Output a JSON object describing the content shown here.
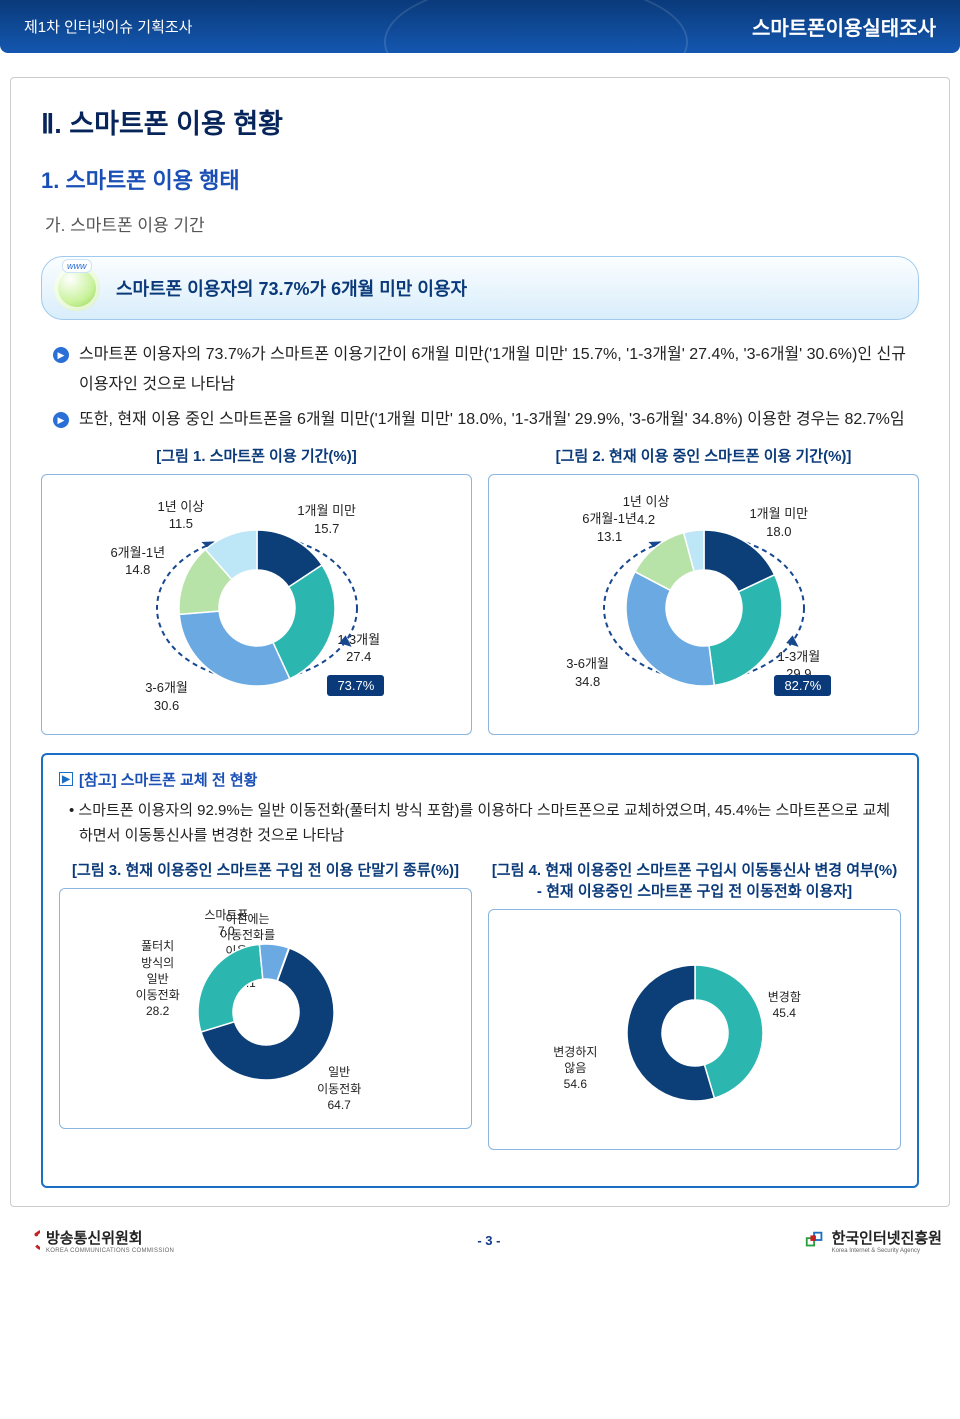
{
  "header": {
    "left": "제1차 인터넷이슈 기획조사",
    "right": "스마트폰이용실태조사"
  },
  "page": {
    "h1": "Ⅱ. 스마트폰 이용 현황",
    "h2": "1. 스마트폰 이용 행태",
    "h3": "가. 스마트폰 이용 기간",
    "highlight": "스마트폰 이용자의 73.7%가 6개월 미만 이용자",
    "bullet1": "스마트폰 이용자의 73.7%가 스마트폰 이용기간이 6개월 미만('1개월 미만' 15.7%, '1-3개월' 27.4%, '3-6개월' 30.6%)인 신규 이용자인 것으로 나타남",
    "bullet2": "또한, 현재 이용 중인 스마트폰을 6개월 미만('1개월 미만' 18.0%, '1-3개월' 29.9%, '3-6개월' 34.8%) 이용한 경우는 82.7%임",
    "fig1_title": "[그림 1. 스마트폰 이용 기간(%)]",
    "fig2_title": "[그림 2. 현재 이용 중인 스마트폰 이용 기간(%)]",
    "fig3_title": "[그림 3. 현재 이용중인 스마트폰 구입 전 이용 단말기 종류(%)]",
    "fig4_title": "[그림 4. 현재 이용중인 스마트폰 구입시 이동통신사 변경 여부(%) - 현재 이용중인 스마트폰 구입 전 이동전화 이용자]",
    "ref_title": "[참고] 스마트폰 교체 전 현황",
    "ref_bullet": "스마트폰 이용자의 92.9%는 일반 이동전화(풀터치 방식 포함)를 이용하다 스마트폰으로 교체하였으며, 45.4%는 스마트폰으로 교체하면서 이동통신사를 변경한 것으로 나타남"
  },
  "charts": {
    "fig1": {
      "type": "donut",
      "badge": "73.7%",
      "slices": [
        {
          "label": "1개월 미만",
          "value": 15.7,
          "color": "#0c3f77"
        },
        {
          "label": "1-3개월",
          "value": 27.4,
          "color": "#2bb6b0"
        },
        {
          "label": "3-6개월",
          "value": 30.6,
          "color": "#6aa9e2"
        },
        {
          "label": "6개월-1년",
          "value": 14.8,
          "color": "#b8e3a8"
        },
        {
          "label": "1년 이상",
          "value": 11.5,
          "color": "#bde6f6"
        }
      ]
    },
    "fig2": {
      "type": "donut",
      "badge": "82.7%",
      "slices": [
        {
          "label": "1개월 미만",
          "value": 18.0,
          "color": "#0c3f77"
        },
        {
          "label": "1-3개월",
          "value": 29.9,
          "color": "#2bb6b0"
        },
        {
          "label": "3-6개월",
          "value": 34.8,
          "color": "#6aa9e2"
        },
        {
          "label": "6개월-1년",
          "value": 13.1,
          "color": "#b8e3a8"
        },
        {
          "label": "1년 이상",
          "value": 4.2,
          "color": "#bde6f6"
        }
      ]
    },
    "fig3": {
      "type": "donut",
      "slices": [
        {
          "label": "일반\\n이동전화",
          "value": 64.7,
          "color": "#0c3f77"
        },
        {
          "label": "풀터치\\n방식의\\n일반\\n이동전화",
          "value": 28.2,
          "color": "#2bb6b0"
        },
        {
          "label": "스마트폰",
          "value": 7.0,
          "color": "#6aa9e2"
        },
        {
          "label": "이전에는\\n이동전화를\\n이용하지\\n않음",
          "value": 0.1,
          "color": "#b8e3a8"
        }
      ]
    },
    "fig4": {
      "type": "donut",
      "slices": [
        {
          "label": "변경함",
          "value": 45.4,
          "color": "#2bb6b0"
        },
        {
          "label": "변경하지\\n않음",
          "value": 54.6,
          "color": "#0c3f77"
        }
      ]
    }
  },
  "footer": {
    "left_org": "방송통신위원회",
    "left_sub": "KOREA COMMUNICATIONS COMMISSION",
    "page_num": "- 3 -",
    "right_org": "한국인터넷진흥원",
    "right_sub": "Korea Internet & Security Agency"
  },
  "style": {
    "donut_outer_r": 78,
    "donut_inner_r": 38,
    "donut_small_outer": 68,
    "donut_small_inner": 33,
    "arc_color": "#17488f"
  }
}
